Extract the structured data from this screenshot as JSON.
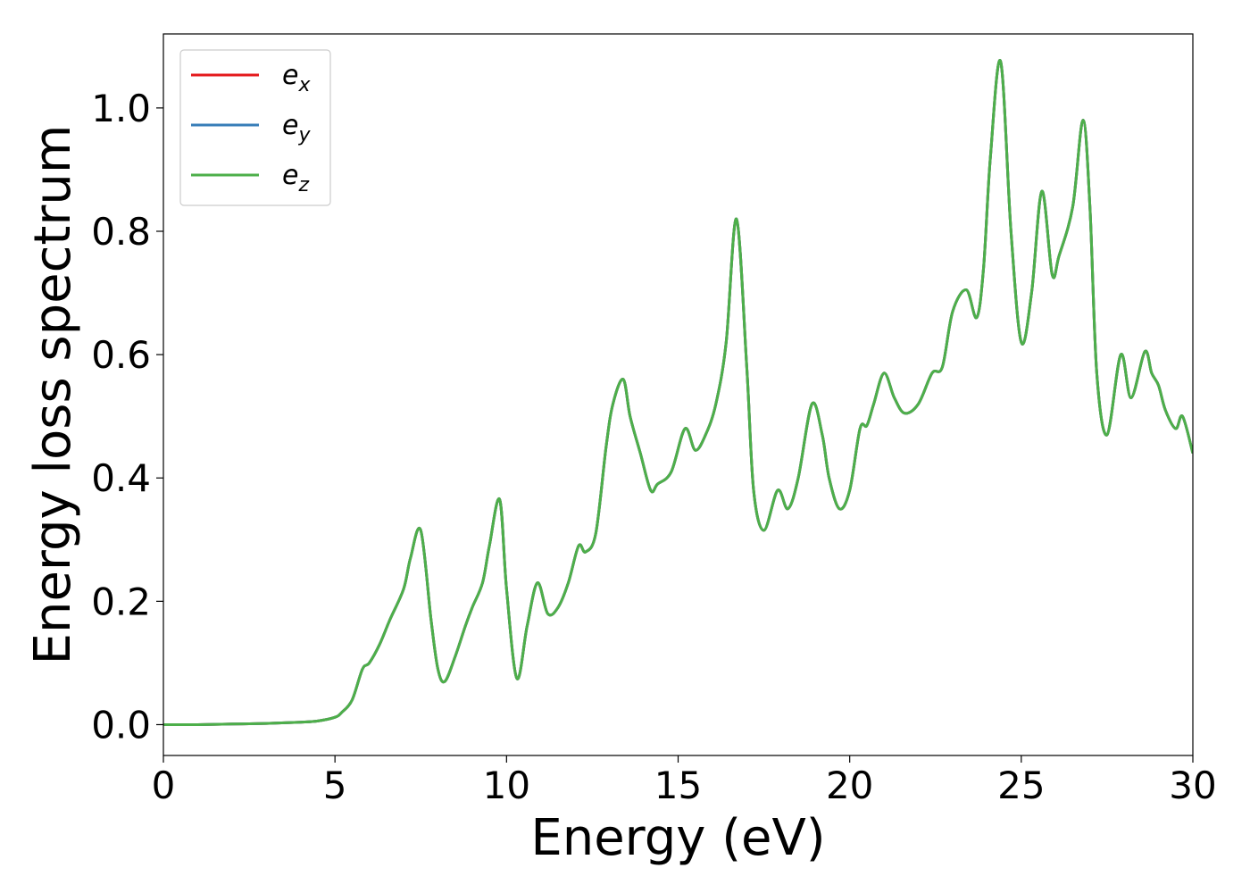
{
  "chart_data": {
    "type": "line",
    "xlabel": "Energy (eV)",
    "ylabel": "Energy loss spectrum",
    "xlim": [
      0,
      30
    ],
    "ylim": [
      -0.05,
      1.12
    ],
    "xticks": [
      0,
      5,
      10,
      15,
      20,
      25,
      30
    ],
    "yticks": [
      0.0,
      0.2,
      0.4,
      0.6,
      0.8,
      1.0
    ],
    "xtick_labels": [
      "0",
      "5",
      "10",
      "15",
      "20",
      "25",
      "30"
    ],
    "ytick_labels": [
      "0.0",
      "0.2",
      "0.4",
      "0.6",
      "0.8",
      "1.0"
    ],
    "grid": false,
    "legend_position": "top-left",
    "series": [
      {
        "name": "e",
        "subscript": "x",
        "color": "#e41a1c"
      },
      {
        "name": "e",
        "subscript": "y",
        "color": "#377eb8"
      },
      {
        "name": "e",
        "subscript": "z",
        "color": "#4daf4a"
      }
    ],
    "x": [
      0,
      1,
      2,
      3,
      4,
      4.5,
      5,
      5.2,
      5.5,
      5.8,
      6.0,
      6.3,
      6.6,
      7.0,
      7.2,
      7.5,
      7.8,
      8.0,
      8.2,
      8.5,
      8.8,
      9.0,
      9.3,
      9.5,
      9.8,
      10.0,
      10.3,
      10.6,
      10.9,
      11.2,
      11.5,
      11.8,
      12.1,
      12.3,
      12.6,
      12.9,
      13.1,
      13.4,
      13.6,
      13.9,
      14.2,
      14.4,
      14.8,
      15.2,
      15.5,
      15.8,
      16.1,
      16.4,
      16.7,
      17.0,
      17.2,
      17.5,
      17.9,
      18.2,
      18.5,
      18.9,
      19.2,
      19.4,
      19.7,
      20.0,
      20.3,
      20.5,
      20.7,
      21.0,
      21.3,
      21.6,
      22.0,
      22.4,
      22.7,
      23.0,
      23.4,
      23.7,
      23.9,
      24.1,
      24.4,
      24.7,
      25.0,
      25.3,
      25.6,
      25.9,
      26.1,
      26.5,
      26.8,
      27.0,
      27.2,
      27.5,
      27.9,
      28.2,
      28.6,
      28.8,
      29.0,
      29.2,
      29.5,
      29.7,
      30.0
    ],
    "y": [
      0.0,
      0.0,
      0.001,
      0.002,
      0.004,
      0.006,
      0.012,
      0.02,
      0.04,
      0.09,
      0.1,
      0.13,
      0.17,
      0.22,
      0.27,
      0.315,
      0.17,
      0.09,
      0.07,
      0.11,
      0.16,
      0.19,
      0.23,
      0.29,
      0.365,
      0.22,
      0.075,
      0.16,
      0.23,
      0.18,
      0.19,
      0.23,
      0.29,
      0.28,
      0.31,
      0.45,
      0.52,
      0.56,
      0.5,
      0.44,
      0.38,
      0.39,
      0.41,
      0.48,
      0.445,
      0.47,
      0.52,
      0.62,
      0.82,
      0.58,
      0.38,
      0.315,
      0.38,
      0.35,
      0.4,
      0.52,
      0.47,
      0.4,
      0.35,
      0.38,
      0.48,
      0.485,
      0.52,
      0.57,
      0.53,
      0.505,
      0.52,
      0.57,
      0.58,
      0.67,
      0.705,
      0.66,
      0.74,
      0.92,
      1.075,
      0.8,
      0.62,
      0.7,
      0.865,
      0.73,
      0.76,
      0.84,
      0.98,
      0.84,
      0.57,
      0.47,
      0.6,
      0.53,
      0.605,
      0.57,
      0.55,
      0.51,
      0.48,
      0.5,
      0.44
    ]
  }
}
